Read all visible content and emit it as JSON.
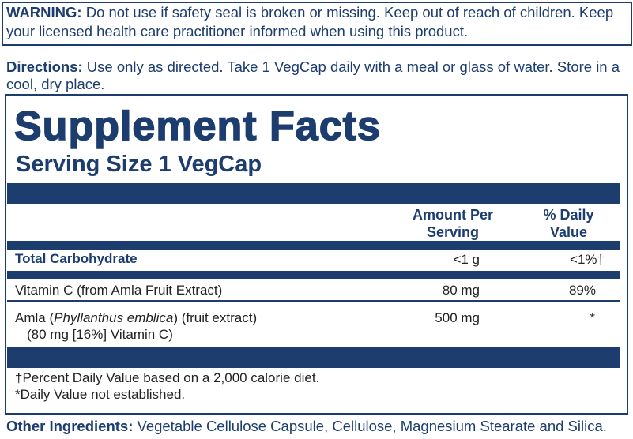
{
  "warning": {
    "label": "WARNING:",
    "text": "Do not use if safety seal is broken or missing. Keep out of reach of children. Keep your licensed health care practitioner informed when using this product."
  },
  "directions": {
    "label": "Directions:",
    "text": "Use only as directed. Take 1 VegCap daily with a meal or glass of water. Store in a cool, dry place."
  },
  "facts": {
    "title": "Supplement Facts",
    "serving_size": "Serving Size 1 VegCap",
    "columns": [
      "Amount Per Serving",
      "% Daily Value"
    ],
    "rows": [
      {
        "name": "Total Carbohydrate",
        "amount": "<1 g",
        "dv": "<1%†"
      },
      {
        "name": "Vitamin C (from Amla Fruit Extract)",
        "amount": "80 mg",
        "dv": "89%"
      },
      {
        "name_parts": [
          "Amla (",
          "Phyllanthus emblica",
          ") (fruit extract)"
        ],
        "sub": "(80 mg [16%] Vitamin C)",
        "amount": "500 mg",
        "dv": "*"
      }
    ],
    "footnotes": [
      "†Percent Daily Value based on a 2,000 calorie diet.",
      "*Daily Value not established."
    ]
  },
  "other_ingredients": {
    "label": "Other Ingredients:",
    "text": "Vegetable Cellulose Capsule, Cellulose, Magnesium Stearate and Silica."
  }
}
